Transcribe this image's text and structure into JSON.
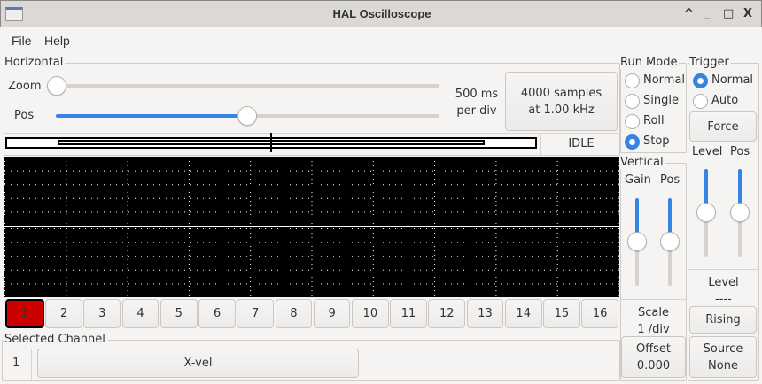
{
  "window": {
    "title": "HAL Oscilloscope",
    "controls": [
      "^",
      "_",
      "□",
      "X"
    ]
  },
  "menu": [
    "File",
    "Help"
  ],
  "horizontal": {
    "label": "Horizontal",
    "zoom_label": "Zoom",
    "pos_label": "Pos",
    "zoom_value": 0,
    "pos_value": 0.49,
    "time_per_div": "500 ms",
    "per_div": "per div",
    "samples_line1": "4000 samples",
    "samples_line2": "at 1.00 kHz",
    "status": "IDLE"
  },
  "run_mode": {
    "label": "Run Mode",
    "options": [
      "Normal",
      "Single",
      "Roll",
      "Stop"
    ],
    "selected": "Stop"
  },
  "trigger": {
    "label": "Trigger",
    "options": [
      "Normal",
      "Auto"
    ],
    "selected": "Normal",
    "force": "Force",
    "level_label": "Level",
    "pos_label": "Pos",
    "level_value": 0.5,
    "pos_value": 0.5,
    "level_title": "Level",
    "level_readout": "----",
    "edge": "Rising",
    "source_label": "Source",
    "source_value": "None"
  },
  "vertical": {
    "label": "Vertical",
    "gain_label": "Gain",
    "pos_label": "Pos",
    "gain_value": 0.5,
    "pos_value": 0.5,
    "scale_label": "Scale",
    "scale_value": "1 /div",
    "offset_label": "Offset",
    "offset_value": "0.000"
  },
  "channels": [
    "1",
    "2",
    "3",
    "4",
    "5",
    "6",
    "7",
    "8",
    "9",
    "10",
    "11",
    "12",
    "13",
    "14",
    "15",
    "16"
  ],
  "selected_channel": {
    "label": "Selected Channel",
    "number": "1",
    "name": "X-vel"
  },
  "colors": {
    "accent": "#3584e4",
    "channel_active": "#cc0000",
    "scope_bg": "#000000"
  }
}
